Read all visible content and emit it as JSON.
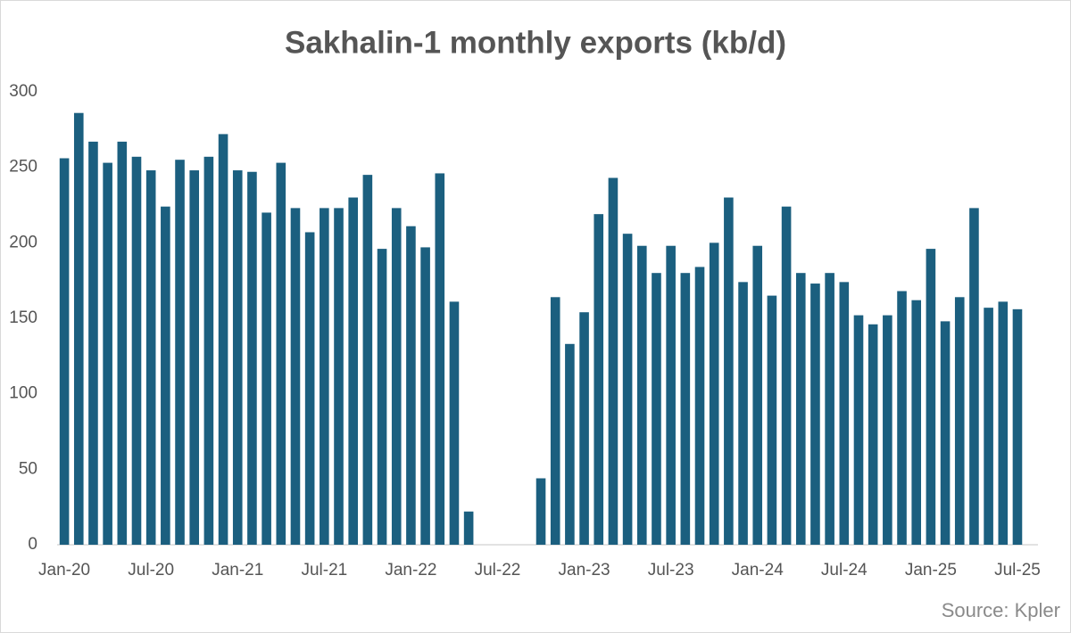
{
  "chart_data": {
    "type": "bar",
    "title": "Sakhalin-1 monthly exports (kb/d)",
    "source": "Source: Kpler",
    "categories": [
      "Jan-20",
      null,
      null,
      null,
      null,
      null,
      "Jul-20",
      null,
      null,
      null,
      null,
      null,
      "Jan-21",
      null,
      null,
      null,
      null,
      null,
      "Jul-21",
      null,
      null,
      null,
      null,
      null,
      "Jan-22",
      null,
      null,
      null,
      null,
      null,
      "Jul-22",
      null,
      null,
      null,
      null,
      null,
      "Jan-23",
      null,
      null,
      null,
      null,
      null,
      "Jul-23",
      null,
      null,
      null,
      null,
      null,
      "Jan-24",
      null,
      null,
      null,
      null,
      null,
      "Jul-24",
      null,
      null,
      null,
      null,
      null,
      "Jan-25",
      null,
      null,
      null,
      null,
      null,
      "Jul-25"
    ],
    "values": [
      256,
      286,
      267,
      253,
      267,
      257,
      248,
      224,
      255,
      248,
      257,
      272,
      248,
      247,
      220,
      253,
      223,
      207,
      223,
      223,
      230,
      245,
      196,
      223,
      211,
      197,
      246,
      161,
      22,
      0,
      0,
      0,
      0,
      44,
      164,
      133,
      154,
      219,
      243,
      206,
      198,
      180,
      198,
      180,
      184,
      200,
      230,
      174,
      198,
      165,
      224,
      180,
      173,
      180,
      174,
      152,
      146,
      152,
      168,
      162,
      196,
      148,
      164,
      223,
      157,
      161,
      156
    ],
    "color": "#1b5f7f",
    "ylim": [
      0,
      300
    ],
    "yticks": [
      0,
      50,
      100,
      150,
      200,
      250,
      300
    ],
    "grid": false
  }
}
